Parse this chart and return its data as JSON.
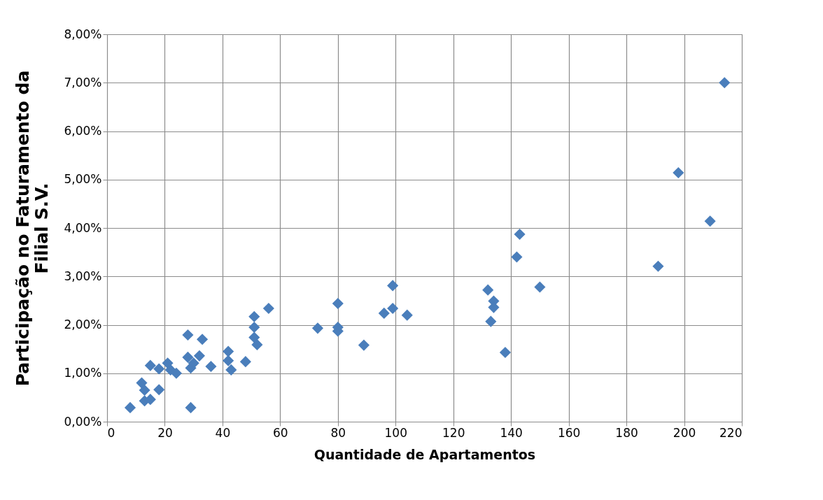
{
  "chart_data": {
    "type": "scatter",
    "xlabel": "Quantidade de Apartamentos",
    "ylabel": "Participação no Faturamento da Filial S.V.",
    "x": [
      8,
      12,
      13,
      13,
      15,
      18,
      15,
      18,
      21,
      22,
      24,
      28,
      28,
      29,
      29,
      30,
      32,
      33,
      36,
      42,
      42,
      43,
      48,
      51,
      51,
      51,
      52,
      56,
      73,
      80,
      80,
      80,
      89,
      96,
      99,
      99,
      104,
      143,
      142,
      150,
      132,
      134,
      134,
      133,
      138,
      214,
      198,
      209,
      191
    ],
    "series": [
      {
        "color": "#4a7ebb",
        "values": [
          0.29,
          0.8,
          0.65,
          0.43,
          0.46,
          0.66,
          1.16,
          1.09,
          1.21,
          1.07,
          1.0,
          1.79,
          1.33,
          1.11,
          0.29,
          1.21,
          1.36,
          1.7,
          1.14,
          1.45,
          1.26,
          1.07,
          1.24,
          2.17,
          1.95,
          1.74,
          1.59,
          2.34,
          1.93,
          2.44,
          1.95,
          1.87,
          1.58,
          2.24,
          2.81,
          2.34,
          2.2,
          3.87,
          3.4,
          2.78,
          2.72,
          2.49,
          2.36,
          2.07,
          1.43,
          7.0,
          5.14,
          4.14,
          3.21
        ]
      }
    ],
    "xlim": [
      0,
      220
    ],
    "xticks": [
      0,
      20,
      40,
      60,
      80,
      100,
      120,
      140,
      160,
      180,
      200,
      220
    ],
    "ylim": [
      0,
      8
    ],
    "yticks": [
      {
        "value": 0,
        "label": "0,00%"
      },
      {
        "value": 1,
        "label": "1,00%"
      },
      {
        "value": 2,
        "label": "2,00%"
      },
      {
        "value": 3,
        "label": "3,00%"
      },
      {
        "value": 4,
        "label": "4,00%"
      },
      {
        "value": 5,
        "label": "5,00%"
      },
      {
        "value": 6,
        "label": "6,00%"
      },
      {
        "value": 7,
        "label": "7,00%"
      },
      {
        "value": 8,
        "label": "8,00%"
      }
    ],
    "grid": true,
    "marker": "diamond",
    "legend": false
  }
}
